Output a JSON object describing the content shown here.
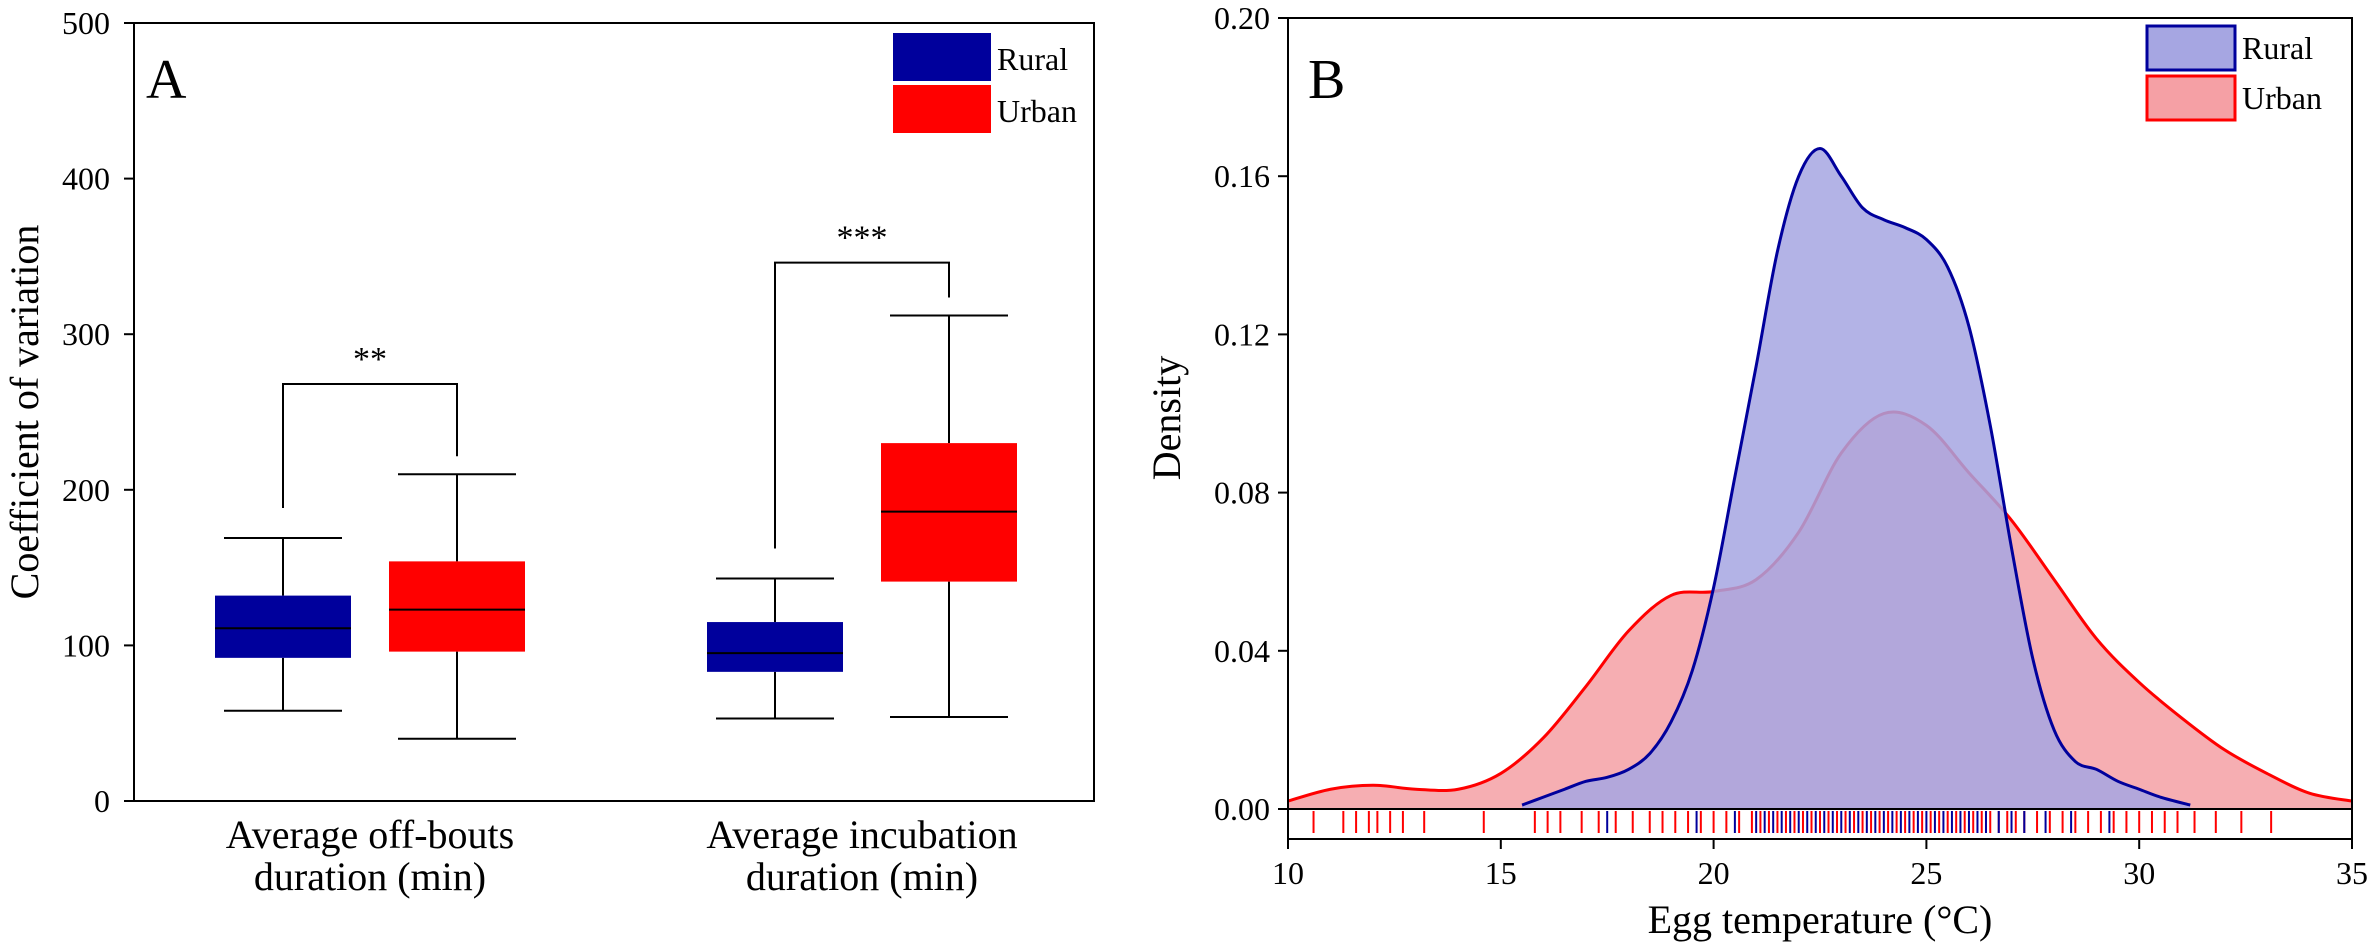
{
  "chart_data": [
    {
      "panel_label": "A",
      "type": "box",
      "ylabel": "Coefficient of  variation",
      "ylim": [
        0,
        500
      ],
      "yticks": [
        "0",
        "100",
        "200",
        "300",
        "400",
        "500"
      ],
      "categories": [
        "Average off-bouts duration (min)",
        "Average incubation duration (min)"
      ],
      "category_lines": [
        [
          "Average off-bouts",
          "duration (min)"
        ],
        [
          "Average incubation",
          "duration (min)"
        ]
      ],
      "legend": [
        {
          "name": "Rural",
          "color": "#00009c"
        },
        {
          "name": "Urban",
          "color": "#ff0000"
        }
      ],
      "series": [
        {
          "name": "Rural",
          "color": "#00009c",
          "boxes": [
            {
              "min": 58,
              "q1": 92,
              "median": 111,
              "q3": 132,
              "max": 169
            },
            {
              "min": 53,
              "q1": 83,
              "median": 95,
              "q3": 115,
              "max": 143
            }
          ]
        },
        {
          "name": "Urban",
          "color": "#ff0000",
          "boxes": [
            {
              "min": 40,
              "q1": 96,
              "median": 123,
              "q3": 154,
              "max": 210
            },
            {
              "min": 54,
              "q1": 141,
              "median": 186,
              "q3": 230,
              "max": 312
            }
          ]
        }
      ],
      "significance": [
        {
          "label": "**",
          "y": 268
        },
        {
          "label": "***",
          "y": 346
        }
      ]
    },
    {
      "panel_label": "B",
      "type": "area",
      "xlabel": "Egg temperature (°C)",
      "ylabel": "Density",
      "xlim": [
        10,
        35
      ],
      "ylim": [
        0,
        0.2
      ],
      "xticks": [
        "10",
        "15",
        "20",
        "25",
        "30",
        "35"
      ],
      "yticks": [
        "0.00",
        "0.04",
        "0.08",
        "0.12",
        "0.16",
        "0.20"
      ],
      "legend": [
        {
          "name": "Rural",
          "color": "#00009c"
        },
        {
          "name": "Urban",
          "color": "#ff0000"
        }
      ],
      "series": [
        {
          "name": "Urban",
          "stroke": "#ff0000",
          "fill": "#f5a0a5",
          "x": [
            10,
            11,
            12,
            13,
            14,
            15,
            16,
            17,
            18,
            19,
            20,
            21,
            22,
            23,
            24,
            25,
            26,
            27,
            28,
            29,
            30,
            31,
            32,
            33,
            34,
            35
          ],
          "y": [
            0.002,
            0.005,
            0.006,
            0.005,
            0.005,
            0.009,
            0.018,
            0.031,
            0.045,
            0.054,
            0.055,
            0.058,
            0.07,
            0.09,
            0.1,
            0.097,
            0.085,
            0.073,
            0.058,
            0.043,
            0.032,
            0.023,
            0.015,
            0.009,
            0.004,
            0.002
          ]
        },
        {
          "name": "Rural",
          "stroke": "#00009c",
          "fill": "#a6a6e2",
          "x": [
            15.5,
            16,
            16.5,
            17,
            17.5,
            18,
            18.5,
            19,
            19.5,
            20,
            20.5,
            21,
            21.5,
            22,
            22.5,
            23,
            23.5,
            24,
            24.5,
            25,
            25.5,
            26,
            26.5,
            27,
            27.5,
            28,
            28.5,
            29,
            29.5,
            30,
            30.5,
            31.2
          ],
          "y": [
            0.001,
            0.003,
            0.005,
            0.007,
            0.008,
            0.01,
            0.014,
            0.022,
            0.035,
            0.056,
            0.084,
            0.112,
            0.141,
            0.16,
            0.167,
            0.16,
            0.152,
            0.149,
            0.147,
            0.144,
            0.137,
            0.122,
            0.097,
            0.066,
            0.038,
            0.02,
            0.012,
            0.01,
            0.007,
            0.005,
            0.003,
            0.001
          ]
        }
      ],
      "rug": {
        "urban": [
          10.6,
          11.3,
          11.6,
          11.9,
          12.1,
          12.4,
          12.7,
          13.2,
          14.6,
          15.8,
          16.1,
          16.4,
          16.9,
          17.3,
          17.7,
          18.1,
          18.5,
          18.8,
          19.1,
          19.4,
          19.7,
          20.0,
          20.3,
          20.6,
          20.9,
          21.1,
          21.3,
          21.5,
          21.7,
          21.9,
          22.1,
          22.3,
          22.5,
          22.7,
          22.9,
          23.1,
          23.3,
          23.5,
          23.7,
          23.9,
          24.1,
          24.3,
          24.5,
          24.7,
          24.9,
          25.1,
          25.3,
          25.5,
          25.7,
          25.9,
          26.1,
          26.3,
          26.5,
          26.7,
          26.9,
          27.1,
          27.3,
          27.6,
          27.9,
          28.2,
          28.5,
          28.8,
          29.1,
          29.4,
          29.7,
          30.0,
          30.3,
          30.6,
          30.9,
          31.3,
          31.8,
          32.4,
          33.1
        ],
        "rural": [
          17.5,
          19.6,
          20.5,
          21.0,
          21.2,
          21.4,
          21.6,
          21.8,
          22.0,
          22.2,
          22.4,
          22.6,
          22.8,
          23.0,
          23.2,
          23.4,
          23.6,
          23.8,
          24.0,
          24.2,
          24.4,
          24.6,
          24.8,
          25.0,
          25.2,
          25.4,
          25.6,
          25.8,
          26.0,
          26.2,
          26.4,
          26.7,
          27.0,
          27.3,
          27.8,
          28.4,
          29.3
        ]
      }
    }
  ]
}
